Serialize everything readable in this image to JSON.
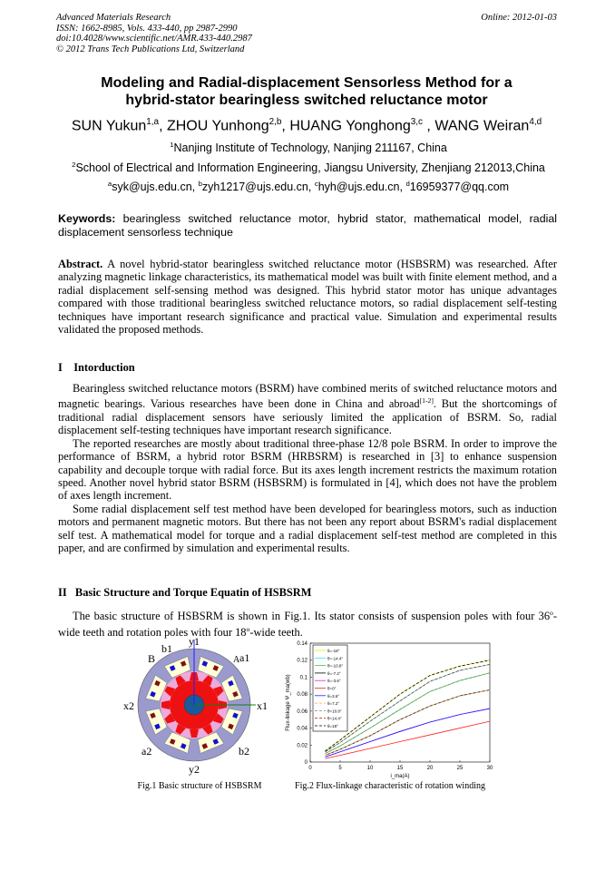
{
  "header": {
    "journal": "Advanced Materials Research",
    "issn": "ISSN: 1662-8985, Vols. 433-440, pp 2987-2990",
    "doi": "doi:10.4028/www.scientific.net/AMR.433-440.2987",
    "copyright": "© 2012 Trans Tech Publications Ltd, Switzerland",
    "online": "Online: 2012-01-03"
  },
  "title": {
    "line1": "Modeling and Radial-displacement Sensorless Method for a",
    "line2": "hybrid-stator bearingless switched reluctance motor"
  },
  "authors": [
    {
      "name": "SUN Yukun",
      "sup": "1,a"
    },
    {
      "name": "ZHOU Yunhong",
      "sup": "2,b"
    },
    {
      "name": "HUANG Yonghong",
      "sup": "3,c"
    },
    {
      "name": "WANG Weiran",
      "sup": "4,d"
    }
  ],
  "affiliations": [
    {
      "sup": "1",
      "text": "Nanjing Institute of Technology, Nanjing 211167, China"
    },
    {
      "sup": "2",
      "text": "School of Electrical and Information Engineering, Jiangsu University, Zhenjiang 212013,China"
    }
  ],
  "emails": [
    {
      "sup": "a",
      "text": "syk@ujs.edu.cn, "
    },
    {
      "sup": "b",
      "text": "zyh1217@ujs.edu.cn, "
    },
    {
      "sup": "c",
      "text": "hyh@ujs.edu.cn, "
    },
    {
      "sup": "d",
      "text": "16959377@qq.com"
    }
  ],
  "keywords": {
    "label": "Keywords:",
    "text": " bearingless switched reluctance motor, hybrid stator, mathematical model, radial displacement sensorless technique"
  },
  "abstract": {
    "label": "Abstract.",
    "text": " A novel hybrid-stator bearingless switched reluctance motor (HSBSRM) was researched. After analyzing magnetic linkage characteristics, its mathematical model was built with finite element method, and a radial displacement self-sensing method was designed. This hybrid stator motor has unique advantages compared with those traditional bearingless switched reluctance motors, so radial displacement self-testing techniques have important research significance and practical value. Simulation and experimental results validated the proposed methods."
  },
  "section1": {
    "heading": "I    Intorduction",
    "p1a": "Bearingless switched reluctance motors (BSRM) have combined merits of switched reluctance motors and magnetic bearings. Various researches have been done in China and abroad",
    "p1ref": "[1-2]",
    "p1b": ". But the shortcomings of traditional radial displacement sensors have seriously limited the application of BSRM. So, radial displacement self-testing techniques have important research significance.",
    "p2": "The reported researches are mostly about traditional three-phase 12/8 pole BSRM. In order to improve the performance of BSRM, a hybrid rotor BSRM (HRBSRM) is researched in [3] to enhance suspension capability and decouple torque with radial force. But its axes length increment restricts the maximum rotation speed. Another novel hybrid stator BSRM (HSBSRM) is formulated in [4], which does not have the problem of axes length increment.",
    "p3": "Some radial displacement self test method have been developed for bearingless motors, such as induction motors and permanent magnetic motors. But there has not been any report about BSRM's radial displacement self test. A mathematical model for torque and a radial displacement self-test method are completed in this paper, and are confirmed by simulation and experimental results."
  },
  "section2": {
    "heading": "II   Basic Structure and Torque Equatin of HSBSRM",
    "p1a": "The basic structure of HSBSRM is shown in Fig.1. Its stator consists of suspension poles with four 36",
    "p1b": "-wide teeth and rotation poles with four 18",
    "p1c": "-wide teeth.",
    "deg": "o"
  },
  "fig1": {
    "caption": "Fig.1 Basic structure of HSBSRM",
    "labels": {
      "y1": "y1",
      "y2": "y2",
      "x1": "x1",
      "x2": "x2",
      "b1": "b1",
      "B": "B",
      "A": "A",
      "a1": "a1",
      "a2": "a2",
      "b2": "b2"
    },
    "colors": {
      "stator": "#9a9acc",
      "slot": "#ffffd8",
      "rotor": "#ee1111",
      "rotor_gap": "#eeaadd",
      "shaft": "#1a5a9a"
    }
  },
  "fig2": {
    "caption": "Fig.2 Flux-linkage characteristic of rotation winding"
  },
  "chart_data": {
    "type": "line",
    "xlabel": "i_ma(A)",
    "ylabel": "Flux-linkage Ψ_ma(wb)",
    "xlim": [
      0,
      30
    ],
    "ylim": [
      0,
      0.14
    ],
    "xticks": [
      "0",
      "5",
      "10",
      "15",
      "20",
      "25",
      "30"
    ],
    "yticks": [
      "0",
      "0.02",
      "0.04",
      "0.06",
      "0.08",
      "0.1",
      "0.12",
      "0.14"
    ],
    "legend_position": "top-left",
    "grid": false,
    "x": [
      2.5,
      5,
      10,
      15,
      20,
      25,
      30
    ],
    "series": [
      {
        "name": "θ=-18°",
        "color": "#e8e820",
        "dash": false,
        "values": [
          0.013,
          0.026,
          0.053,
          0.08,
          0.102,
          0.113,
          0.12
        ]
      },
      {
        "name": "θ=-14.4°",
        "color": "#30e0f0",
        "dash": false,
        "values": [
          0.012,
          0.023,
          0.048,
          0.072,
          0.095,
          0.108,
          0.115
        ]
      },
      {
        "name": "θ=-10.8°",
        "color": "#30d030",
        "dash": false,
        "values": [
          0.01,
          0.019,
          0.04,
          0.062,
          0.083,
          0.096,
          0.105
        ]
      },
      {
        "name": "θ=-7.2°",
        "color": "#000000",
        "dash": false,
        "values": [
          0.008,
          0.015,
          0.031,
          0.05,
          0.066,
          0.078,
          0.085
        ]
      },
      {
        "name": "θ=-3.6°",
        "color": "#e020e0",
        "dash": false,
        "values": [
          0.006,
          0.012,
          0.024,
          0.036,
          0.047,
          0.056,
          0.063
        ]
      },
      {
        "name": "θ=0°",
        "color": "#ff2020",
        "dash": false,
        "values": [
          0.004,
          0.008,
          0.016,
          0.024,
          0.032,
          0.04,
          0.048
        ]
      },
      {
        "name": "θ=3.6°",
        "color": "#2020ff",
        "dash": false,
        "values": [
          0.006,
          0.012,
          0.024,
          0.036,
          0.047,
          0.056,
          0.063
        ]
      },
      {
        "name": "θ=7.2°",
        "color": "#f0a050",
        "dash": true,
        "values": [
          0.008,
          0.015,
          0.031,
          0.05,
          0.066,
          0.078,
          0.085
        ]
      },
      {
        "name": "θ=10.8°",
        "color": "#808080",
        "dash": true,
        "values": [
          0.01,
          0.019,
          0.04,
          0.062,
          0.083,
          0.096,
          0.105
        ]
      },
      {
        "name": "θ=14.4°",
        "color": "#a03010",
        "dash": true,
        "values": [
          0.012,
          0.023,
          0.048,
          0.072,
          0.095,
          0.108,
          0.115
        ]
      },
      {
        "name": "θ=18°",
        "color": "#000000",
        "dash": true,
        "values": [
          0.013,
          0.026,
          0.053,
          0.08,
          0.102,
          0.113,
          0.12
        ]
      }
    ]
  }
}
